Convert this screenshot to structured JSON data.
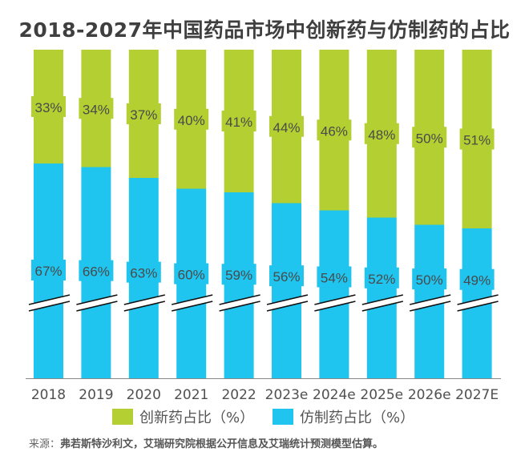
{
  "chart_data": {
    "type": "bar",
    "stacked": true,
    "title": "2018-2027年中国药品市场中创新药与仿制药的占比",
    "categories": [
      "2018",
      "2019",
      "2020",
      "2021",
      "2022",
      "2023e",
      "2024e",
      "2025e",
      "2026e",
      "2027E"
    ],
    "series": [
      {
        "name": "仿制药占比（%）",
        "color": "#1fc4ef",
        "values": [
          67,
          66,
          63,
          60,
          59,
          56,
          54,
          52,
          50,
          49
        ]
      },
      {
        "name": "创新药占比（%）",
        "color": "#b3cf32",
        "values": [
          33,
          34,
          37,
          40,
          41,
          44,
          46,
          48,
          50,
          51
        ]
      }
    ],
    "value_suffix": "%",
    "axis_break": true,
    "ylim": [
      0,
      100
    ],
    "legend_placement": "bottom"
  },
  "source": {
    "label": "来源：",
    "text": "弗若斯特沙利文，艾瑞研究院根据公开信息及艾瑞统计预测模型估算。"
  }
}
